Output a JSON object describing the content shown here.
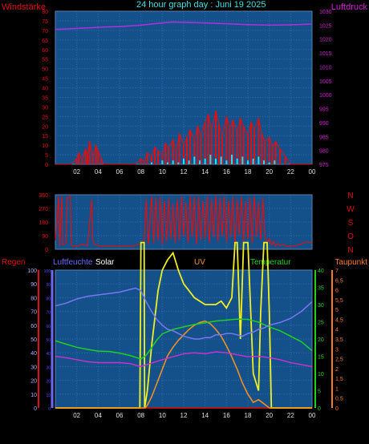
{
  "title": "24 hour graph day : Juni 19 2025",
  "colors": {
    "background": "#000000",
    "plot": "#14508a",
    "grid": "#2f6cae",
    "wind_label": "#e01010",
    "pressure_label": "#d020d0",
    "wind_gust": "#e01010",
    "wind_avg": "#20e0f0",
    "pressure": "#b030e0",
    "direction": "#e01010",
    "humidity": "#7878f0",
    "temperature": "#20d020",
    "dewpoint": "#d030d0",
    "solar": "#f0f020",
    "uv": "#f09020",
    "rain_axis": "#e01010",
    "humidity_axis": "#6a6aff",
    "temp_axis": "#20d020",
    "dew_axis": "#ff7a20"
  },
  "x_ticks": [
    "02",
    "04",
    "06",
    "08",
    "10",
    "12",
    "14",
    "16",
    "18",
    "20",
    "22",
    "00"
  ],
  "chart_data": [
    {
      "type": "line",
      "name": "wind-pressure",
      "left_axis_label": "Windstärke",
      "right_axis_label": "Luftdruck",
      "left_ticks": [
        "0",
        "5",
        "10",
        "15",
        "20",
        "25",
        "30",
        "35",
        "40",
        "45",
        "50",
        "55",
        "60",
        "65",
        "70",
        "75",
        "80"
      ],
      "right_ticks": [
        "975",
        "980",
        "985",
        "990",
        "995",
        "1000",
        "1005",
        "1010",
        "1015",
        "1020",
        "1025",
        "1030"
      ],
      "left_range": [
        0,
        80
      ],
      "right_range": [
        975,
        1030
      ],
      "x_range_hours": [
        0,
        24
      ],
      "series": [
        {
          "key": "gust",
          "hours": [
            0.0,
            1.5,
            2.0,
            2.2,
            2.5,
            2.8,
            3.0,
            3.2,
            3.5,
            3.8,
            4.0,
            4.3,
            4.5,
            5.0,
            6.0,
            7.0,
            7.5,
            8.0,
            8.3,
            8.6,
            9.0,
            9.3,
            9.6,
            10.0,
            10.3,
            10.6,
            11.0,
            11.3,
            11.6,
            12.0,
            12.3,
            12.6,
            13.0,
            13.3,
            13.6,
            14.0,
            14.3,
            14.6,
            15.0,
            15.3,
            15.6,
            16.0,
            16.3,
            16.6,
            17.0,
            17.3,
            17.6,
            18.0,
            18.3,
            18.6,
            19.0,
            19.3,
            19.6,
            20.0,
            20.3,
            20.6,
            21.0,
            21.5,
            22.0,
            23.0,
            24.0
          ],
          "values": [
            0,
            0,
            3,
            6,
            2,
            8,
            5,
            12,
            4,
            10,
            7,
            3,
            0,
            0,
            0,
            0,
            0,
            3,
            1,
            6,
            4,
            9,
            7,
            5,
            11,
            8,
            13,
            6,
            16,
            10,
            14,
            18,
            12,
            20,
            15,
            22,
            26,
            18,
            28,
            21,
            15,
            25,
            19,
            23,
            17,
            24,
            20,
            15,
            22,
            18,
            24,
            16,
            12,
            14,
            9,
            12,
            8,
            4,
            0,
            0,
            0
          ]
        },
        {
          "key": "avg",
          "hours": [
            0.0,
            8.5,
            9.0,
            9.5,
            10.0,
            10.5,
            11.0,
            11.5,
            12.0,
            12.5,
            13.0,
            13.5,
            14.0,
            14.5,
            15.0,
            15.5,
            16.0,
            16.5,
            17.0,
            17.5,
            18.0,
            18.5,
            19.0,
            19.5,
            20.0,
            20.5,
            21.0,
            24.0
          ],
          "values": [
            0,
            0,
            1,
            0,
            2,
            1,
            2,
            1,
            3,
            2,
            4,
            2,
            3,
            5,
            3,
            4,
            2,
            5,
            3,
            4,
            2,
            3,
            4,
            2,
            1,
            2,
            0,
            0
          ]
        },
        {
          "key": "pressure",
          "hours": [
            0,
            2,
            4,
            6,
            8,
            10,
            11,
            12,
            14,
            16,
            18,
            20,
            22,
            24
          ],
          "values": [
            1023.5,
            1023.8,
            1024.2,
            1024.5,
            1025.0,
            1025.8,
            1026.1,
            1026.0,
            1025.8,
            1025.5,
            1025.2,
            1025.0,
            1025.1,
            1025.4
          ]
        }
      ]
    },
    {
      "type": "line",
      "name": "wind-direction",
      "right_axis_labels": [
        "N",
        "W",
        "S",
        "O",
        "N"
      ],
      "left_ticks": [
        "0",
        "90",
        "180",
        "270",
        "360"
      ],
      "left_range": [
        0,
        360
      ],
      "x_range_hours": [
        0,
        24
      ],
      "series": [
        {
          "key": "direction",
          "hours": [
            0.0,
            0.3,
            0.4,
            0.6,
            0.7,
            1.0,
            1.1,
            1.4,
            1.5,
            2.0,
            2.5,
            3.0,
            3.4,
            3.5,
            3.7,
            4.0,
            4.5,
            5.0,
            6.0,
            7.0,
            7.5,
            8.0,
            8.3,
            8.5,
            8.7,
            9.0,
            9.2,
            9.4,
            9.6,
            9.8,
            10.0,
            10.2,
            10.4,
            10.6,
            10.8,
            11.0,
            11.2,
            11.4,
            11.6,
            11.8,
            12.0,
            12.2,
            12.4,
            12.6,
            12.8,
            13.0,
            13.2,
            13.4,
            13.6,
            13.8,
            14.0,
            14.2,
            14.4,
            14.6,
            14.8,
            15.0,
            15.2,
            15.4,
            15.6,
            15.8,
            16.0,
            16.2,
            16.4,
            16.6,
            16.8,
            17.0,
            17.2,
            17.4,
            17.6,
            17.8,
            18.0,
            18.2,
            18.4,
            18.6,
            18.8,
            19.0,
            19.2,
            19.4,
            19.6,
            19.8,
            20.0,
            20.2,
            20.4,
            20.6,
            20.8,
            21.0,
            21.3,
            21.6,
            22.0,
            22.5,
            23.0,
            23.5,
            24.0
          ],
          "values": [
            60,
            350,
            20,
            350,
            30,
            40,
            340,
            350,
            25,
            20,
            30,
            25,
            330,
            60,
            30,
            25,
            20,
            20,
            20,
            20,
            25,
            40,
            60,
            330,
            30,
            350,
            40,
            340,
            60,
            345,
            30,
            320,
            50,
            340,
            70,
            300,
            40,
            330,
            60,
            350,
            90,
            310,
            40,
            350,
            80,
            345,
            30,
            350,
            60,
            320,
            70,
            350,
            40,
            330,
            80,
            355,
            50,
            340,
            90,
            350,
            45,
            320,
            80,
            350,
            40,
            330,
            90,
            345,
            50,
            320,
            70,
            340,
            40,
            350,
            80,
            310,
            60,
            340,
            90,
            40,
            70,
            30,
            50,
            20,
            40,
            25,
            30,
            20,
            20,
            25,
            35,
            50,
            40
          ]
        }
      ]
    },
    {
      "type": "line",
      "name": "climate",
      "axis_labels": {
        "rain": "Regen",
        "humidity": "Luftfeuchte",
        "solar": "Solar",
        "uv": "UV",
        "temperature": "Temperatur",
        "dewpoint": "Taupunkt"
      },
      "rain_ticks": [
        "0",
        "10",
        "20",
        "30",
        "40",
        "50",
        "60",
        "70",
        "80",
        "90",
        "100"
      ],
      "humidity_ticks": [
        "0",
        "10",
        "20",
        "30",
        "40",
        "50",
        "60",
        "70",
        "80",
        "90",
        "100"
      ],
      "temp_ticks": [
        "0",
        "5",
        "10",
        "15",
        "20",
        "25",
        "30",
        "35",
        "40"
      ],
      "dew_ticks": [
        "0",
        "0,5",
        "1",
        "1,5",
        "2",
        "2,5",
        "3",
        "3,5",
        "4",
        "4,5",
        "5",
        "5,5",
        "6",
        "6,5",
        "7"
      ],
      "rain_range": [
        0,
        100
      ],
      "humidity_range": [
        0,
        100
      ],
      "temp_range": [
        0,
        40
      ],
      "dew_range": [
        0,
        7
      ],
      "x_range_hours": [
        0,
        24
      ],
      "series": [
        {
          "key": "humidity",
          "hours": [
            0,
            1,
            2,
            3,
            4,
            5,
            6,
            7,
            7.5,
            8,
            8.5,
            9,
            9.5,
            10,
            10.5,
            11,
            11.5,
            12,
            12.5,
            13,
            13.5,
            14,
            14.5,
            15,
            15.5,
            16,
            16.5,
            17,
            17.5,
            18,
            18.5,
            19,
            19.5,
            20,
            21,
            22,
            23,
            24
          ],
          "values": [
            74,
            76,
            79,
            81,
            82,
            83,
            84,
            86,
            87,
            85,
            77,
            70,
            64,
            60,
            57,
            56,
            54,
            52,
            51,
            50,
            50,
            51,
            51,
            53,
            53,
            54,
            54,
            53,
            52,
            54,
            55,
            57,
            58,
            60,
            62,
            65,
            70,
            77
          ]
        },
        {
          "key": "temperature",
          "hours": [
            0,
            1,
            2,
            3,
            4,
            5,
            6,
            7,
            8,
            8.5,
            9,
            9.5,
            10,
            11,
            12,
            13,
            14,
            15,
            16,
            17,
            18,
            19,
            20,
            21,
            22,
            23,
            24
          ],
          "values": [
            19.5,
            18.5,
            17.6,
            17,
            16.5,
            16.4,
            15.9,
            15.2,
            14.2,
            15.3,
            17.5,
            19.8,
            21.5,
            22.8,
            23.5,
            24.2,
            24.7,
            25.2,
            25.5,
            25.8,
            25.7,
            24.9,
            23.5,
            22.4,
            20.8,
            19.2,
            16.6
          ]
        },
        {
          "key": "dewpoint",
          "hours": [
            0,
            1,
            2,
            3,
            4,
            5,
            6,
            7,
            8,
            9,
            10,
            11,
            12,
            13,
            14,
            15,
            16,
            17,
            18,
            19,
            20,
            21,
            22,
            23,
            24
          ],
          "values": [
            2.62,
            2.55,
            2.45,
            2.35,
            2.3,
            2.3,
            2.3,
            2.25,
            2.1,
            2.28,
            2.45,
            2.6,
            2.75,
            2.8,
            2.75,
            2.85,
            2.8,
            2.7,
            2.6,
            2.62,
            2.55,
            2.45,
            2.3,
            2.2,
            2.1
          ]
        },
        {
          "key": "solar",
          "hours": [
            0,
            7.9,
            8.0,
            8.3,
            8.35,
            8.6,
            9.0,
            9.3,
            9.6,
            10.0,
            10.5,
            11,
            11.5,
            12,
            12.5,
            13,
            13.5,
            14,
            14.5,
            15,
            15.5,
            16,
            16.5,
            16.8,
            17.0,
            17.3,
            17.6,
            18.0,
            18.5,
            19.0,
            19.2,
            19.5,
            19.8,
            20.0,
            20.2,
            24
          ],
          "values": [
            0,
            0,
            48,
            48,
            0,
            5,
            18,
            26,
            34,
            40,
            43,
            45,
            40,
            36,
            34,
            32,
            31,
            30,
            30,
            30,
            31,
            29,
            32,
            48,
            48,
            20,
            48,
            48,
            10,
            5,
            28,
            48,
            48,
            28,
            0,
            0
          ]
        },
        {
          "key": "uv",
          "hours": [
            0,
            8.4,
            8.6,
            9,
            9.5,
            10,
            10.5,
            11,
            11.5,
            12,
            12.5,
            13,
            13.5,
            14,
            14.5,
            15,
            15.5,
            16,
            16.5,
            17,
            17.5,
            18,
            18.5,
            19,
            19.5,
            20,
            24
          ],
          "values": [
            0,
            0,
            2,
            8,
            18,
            28,
            38,
            44,
            49,
            53,
            57,
            60,
            62,
            63,
            61,
            57,
            52,
            45,
            37,
            28,
            18,
            10,
            4,
            6,
            3,
            0,
            0
          ]
        },
        {
          "key": "rain",
          "hours": [
            0,
            24
          ],
          "values": [
            0,
            0
          ]
        }
      ]
    }
  ]
}
